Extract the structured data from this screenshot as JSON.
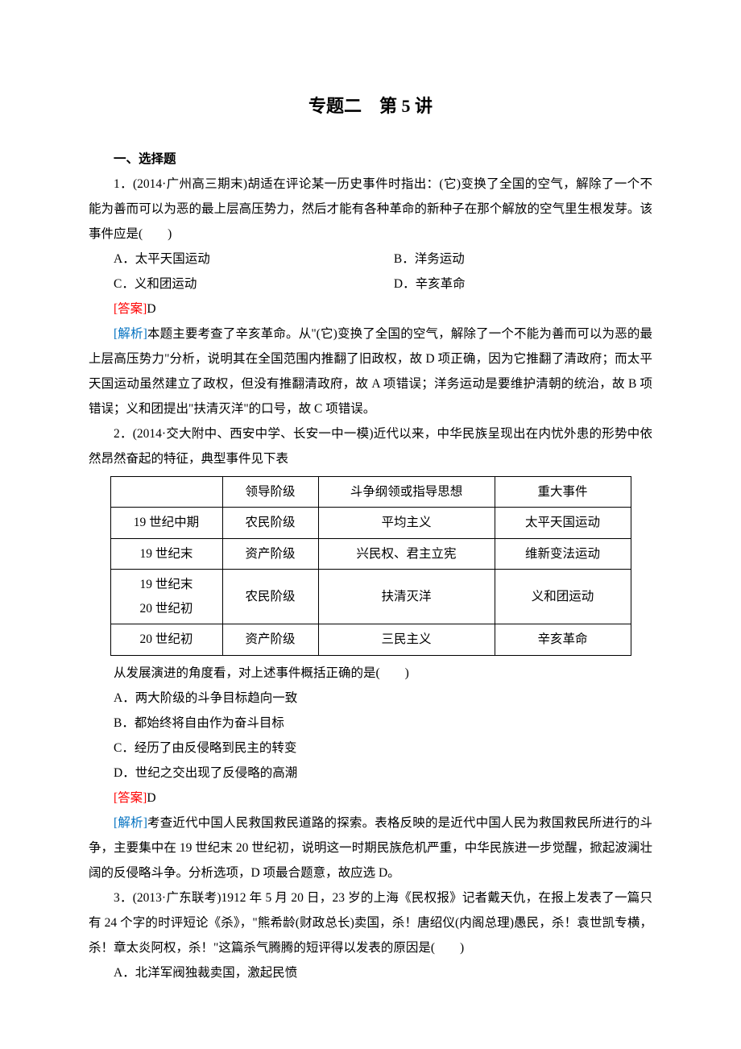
{
  "title": "专题二　第 5 讲",
  "section1": "一、选择题",
  "q1": {
    "stem": "1．(2014·广州高三期末)胡适在评论某一历史事件时指出：(它)变换了全国的空气，解除了一个不能为善而可以为恶的最上层高压势力，然后才能有各种革命的新种子在那个解放的空气里生根发芽。该事件应是(　　)",
    "optA": "A．太平天国运动",
    "optB": "B．洋务运动",
    "optC": "C．义和团运动",
    "optD": "D．辛亥革命",
    "ansLabel": "[答案]",
    "ans": "D",
    "anaLabel": "[解析]",
    "ana": "本题主要考查了辛亥革命。从\"(它)变换了全国的空气，解除了一个不能为善而可以为恶的最上层高压势力\"分析，说明其在全国范围内推翻了旧政权，故 D 项正确，因为它推翻了清政府；而太平天国运动虽然建立了政权，但没有推翻清政府，故 A 项错误；洋务运动是要维护清朝的统治，故 B 项错误；义和团提出\"扶清灭洋\"的口号，故 C 项错误。"
  },
  "q2": {
    "stem": "2．(2014·交大附中、西安中学、长安一中一模)近代以来，中华民族呈现出在内忧外患的形势中依然昂然奋起的特征，典型事件见下表",
    "table": {
      "headers": [
        "",
        "领导阶级",
        "斗争纲领或指导思想",
        "重大事件"
      ],
      "rows": [
        [
          "19 世纪中期",
          "农民阶级",
          "平均主义",
          "太平天国运动"
        ],
        [
          "19 世纪末",
          "资产阶级",
          "兴民权、君主立宪",
          "维新变法运动"
        ],
        [
          "19 世纪末\n20 世纪初",
          "农民阶级",
          "扶清灭洋",
          "义和团运动"
        ],
        [
          "20 世纪初",
          "资产阶级",
          "三民主义",
          "辛亥革命"
        ]
      ],
      "col_widths": [
        "110px",
        "90px",
        "190px",
        "140px"
      ]
    },
    "after": "从发展演进的角度看，对上述事件概括正确的是(　　)",
    "optA": "A．两大阶级的斗争目标趋向一致",
    "optB": "B．都始终将自由作为奋斗目标",
    "optC": "C．经历了由反侵略到民主的转变",
    "optD": "D．世纪之交出现了反侵略的高潮",
    "ansLabel": "[答案]",
    "ans": "D",
    "anaLabel": "[解析]",
    "ana": "考查近代中国人民救国救民道路的探索。表格反映的是近代中国人民为救国救民所进行的斗争，主要集中在 19 世纪末 20 世纪初，说明这一时期民族危机严重，中华民族进一步觉醒，掀起波澜壮阔的反侵略斗争。分析选项，D 项最合题意，故应选 D。"
  },
  "q3": {
    "stem": "3．(2013·广东联考)1912 年 5 月 20 日，23 岁的上海《民权报》记者戴天仇，在报上发表了一篇只有 24 个字的时评短论《杀》，\"熊希龄(财政总长)卖国，杀！唐绍仪(内阁总理)愚民，杀！袁世凯专横，杀！章太炎阿权，杀！\"这篇杀气腾腾的短评得以发表的原因是(　　)",
    "optA": "A．北洋军阀独裁卖国，激起民愤"
  },
  "colors": {
    "answer": "#ff0000",
    "analysis": "#0070c0",
    "text": "#000000",
    "border": "#000000"
  }
}
